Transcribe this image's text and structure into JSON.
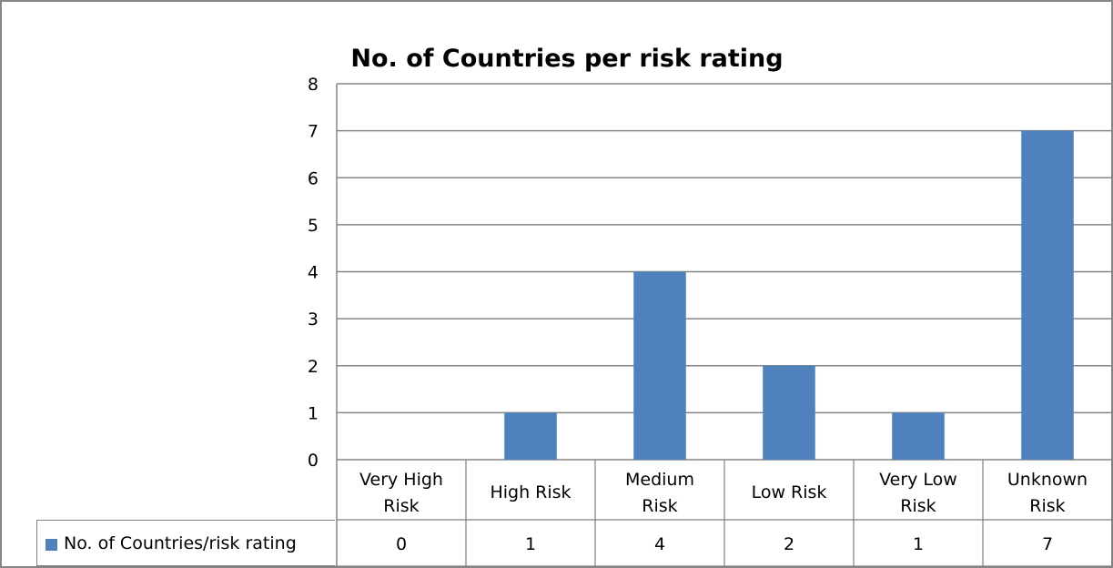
{
  "chart_data": {
    "type": "bar",
    "title": "No. of Countries per risk rating",
    "categories": [
      [
        "Very High",
        "Risk"
      ],
      [
        "High Risk"
      ],
      [
        "Medium",
        "Risk"
      ],
      [
        "Low Risk"
      ],
      [
        "Very Low",
        "Risk"
      ],
      [
        "Unknown",
        "Risk"
      ]
    ],
    "series": [
      {
        "name": "No. of Countries/risk rating",
        "values": [
          0,
          1,
          4,
          2,
          1,
          7
        ]
      }
    ],
    "ylim": [
      0,
      8
    ],
    "yticks": [
      0,
      1,
      2,
      3,
      4,
      5,
      6,
      7,
      8
    ],
    "grid": true,
    "data_table": true,
    "legend": "data-table-left"
  },
  "colors": {
    "bar": "#4f81bd",
    "grid": "#868686",
    "border": "#7f7f7f"
  }
}
